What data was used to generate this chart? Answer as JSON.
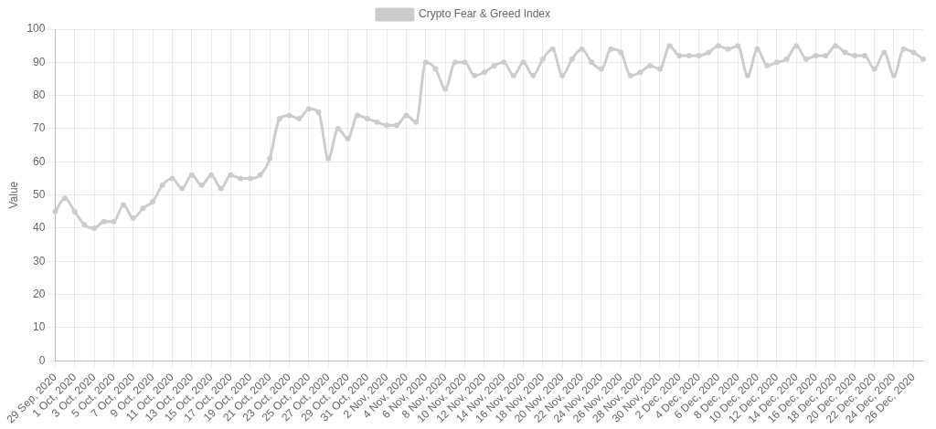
{
  "chart_data": {
    "type": "line",
    "ylabel": "Value",
    "categories": [
      "29 Sep, 2020",
      null,
      "1 Oct, 2020",
      null,
      "3 Oct, 2020",
      null,
      "5 Oct, 2020",
      null,
      "7 Oct, 2020",
      null,
      "9 Oct, 2020",
      null,
      "11 Oct, 2020",
      null,
      "13 Oct, 2020",
      null,
      "15 Oct, 2020",
      null,
      "17 Oct, 2020",
      null,
      "19 Oct, 2020",
      null,
      "21 Oct, 2020",
      null,
      "23 Oct, 2020",
      null,
      "25 Oct, 2020",
      null,
      "27 Oct, 2020",
      null,
      "29 Oct, 2020",
      null,
      "31 Oct, 2020",
      null,
      "2 Nov, 2020",
      null,
      "4 Nov, 2020",
      null,
      "6 Nov, 2020",
      null,
      "8 Nov, 2020",
      null,
      "10 Nov, 2020",
      null,
      "12 Nov, 2020",
      null,
      "14 Nov, 2020",
      null,
      "16 Nov, 2020",
      null,
      "18 Nov, 2020",
      null,
      "20 Nov, 2020",
      null,
      "22 Nov, 2020",
      null,
      "24 Nov, 2020",
      null,
      "26 Nov, 2020",
      null,
      "28 Nov, 2020",
      null,
      "30 Nov, 2020",
      null,
      "2 Dec, 2020",
      null,
      "4 Dec, 2020",
      null,
      "6 Dec, 2020",
      null,
      "8 Dec, 2020",
      null,
      "10 Dec, 2020",
      null,
      "12 Dec, 2020",
      null,
      "14 Dec, 2020",
      null,
      "16 Dec, 2020",
      null,
      "18 Dec, 2020",
      null,
      "20 Dec, 2020",
      null,
      "22 Dec, 2020",
      null,
      "24 Dec, 2020",
      null,
      "26 Dec, 2020",
      null
    ],
    "series": [
      {
        "name": "Crypto Fear & Greed Index",
        "color": "#cccccc",
        "values": [
          45,
          49,
          45,
          41,
          40,
          42,
          42,
          47,
          43,
          46,
          48,
          53,
          55,
          52,
          56,
          53,
          56,
          52,
          56,
          55,
          55,
          56,
          61,
          73,
          74,
          73,
          76,
          75,
          61,
          70,
          67,
          74,
          73,
          72,
          71,
          71,
          74,
          72,
          90,
          88,
          82,
          90,
          90,
          86,
          87,
          89,
          90,
          86,
          90,
          86,
          91,
          94,
          86,
          91,
          94,
          90,
          88,
          94,
          93,
          86,
          87,
          89,
          88,
          95,
          92,
          92,
          92,
          93,
          95,
          94,
          95,
          86,
          94,
          89,
          90,
          91,
          95,
          91,
          92,
          92,
          95,
          93,
          92,
          92,
          88,
          93,
          86,
          94,
          93,
          91
        ]
      }
    ],
    "ylim": [
      0,
      100
    ],
    "yticks": [
      0,
      10,
      20,
      30,
      40,
      50,
      60,
      70,
      80,
      90,
      100
    ],
    "grid": true,
    "legend": "top",
    "marker": "circle",
    "line_style": "solid"
  }
}
